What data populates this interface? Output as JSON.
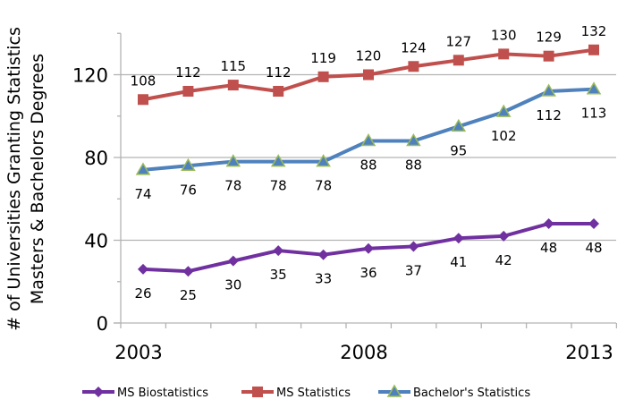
{
  "chart_data": {
    "type": "line",
    "title": "",
    "xlabel": "",
    "ylabel": [
      "# of Universities Granting Statistics",
      "Masters & Bachelors Degrees"
    ],
    "x": [
      2003,
      2004,
      2005,
      2006,
      2007,
      2008,
      2009,
      2010,
      2011,
      2012,
      2013
    ],
    "x_tick_labels": [
      "2003",
      "2008",
      "2013"
    ],
    "y_tick_labels": [
      "0",
      "40",
      "80",
      "120"
    ],
    "y_ticks": [
      0,
      40,
      80,
      120
    ],
    "ylim": [
      0,
      140
    ],
    "grid": "horizontal major",
    "legend_position": "bottom",
    "series": [
      {
        "name": "MS Biostatistics",
        "color": "#7030a0",
        "marker": "diamond",
        "label_position": "below",
        "values": [
          26,
          25,
          30,
          35,
          33,
          36,
          37,
          41,
          42,
          48,
          48
        ]
      },
      {
        "name": "MS Statistics",
        "color": "#c0504d",
        "marker": "square",
        "label_position": "above",
        "values": [
          108,
          112,
          115,
          112,
          119,
          120,
          124,
          127,
          130,
          129,
          132
        ]
      },
      {
        "name": "Bachelor's Statistics",
        "color": "#4f81bd",
        "marker_fill": "#4f81bd",
        "marker_edge": "#9bbb59",
        "marker": "triangle",
        "label_position": "below",
        "values": [
          74,
          76,
          78,
          78,
          78,
          88,
          88,
          95,
          102,
          112,
          113
        ]
      }
    ]
  }
}
